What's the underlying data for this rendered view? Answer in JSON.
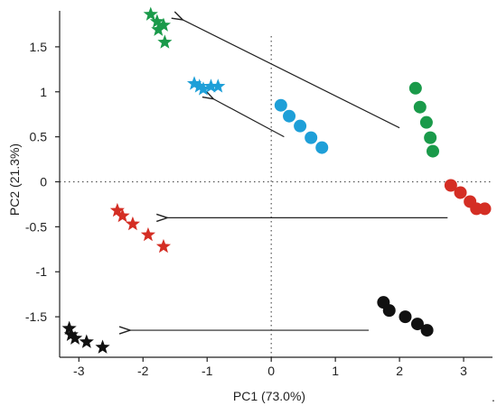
{
  "chart_data": {
    "type": "scatter",
    "xlabel": "PC1 (73.0%)",
    "ylabel": "PC2 (21.3%)",
    "xlim": [
      -3.3,
      3.45
    ],
    "ylim": [
      -1.95,
      1.9
    ],
    "xticks": [
      -3,
      -2,
      -1,
      0,
      1,
      2,
      3
    ],
    "yticks": [
      1.5,
      1,
      0.5,
      0,
      -0.5,
      -1,
      -1.5
    ],
    "xtick_labels": [
      "-3",
      "-2",
      "-1",
      "0",
      "1",
      "2",
      "3"
    ],
    "ytick_labels": [
      "1.5",
      "1",
      "0.5",
      "0",
      "-0.5",
      "-1",
      "-1.5"
    ],
    "reference_lines": {
      "x": 0,
      "y": 0,
      "style": "dotted"
    },
    "legend": "none",
    "series": [
      {
        "color": "#1a9a4a",
        "marker": "circle",
        "points": [
          [
            2.25,
            1.04
          ],
          [
            2.32,
            0.83
          ],
          [
            2.42,
            0.66
          ],
          [
            2.48,
            0.49
          ],
          [
            2.52,
            0.34
          ]
        ]
      },
      {
        "color": "#1a9a4a",
        "marker": "star",
        "points": [
          [
            -1.88,
            1.86
          ],
          [
            -1.78,
            1.78
          ],
          [
            -1.68,
            1.74
          ],
          [
            -1.76,
            1.69
          ],
          [
            -1.66,
            1.55
          ]
        ]
      },
      {
        "color": "#1e9fd8",
        "marker": "circle",
        "points": [
          [
            0.15,
            0.85
          ],
          [
            0.28,
            0.73
          ],
          [
            0.45,
            0.62
          ],
          [
            0.62,
            0.49
          ],
          [
            0.79,
            0.38
          ]
        ]
      },
      {
        "color": "#1e9fd8",
        "marker": "star",
        "points": [
          [
            -1.2,
            1.09
          ],
          [
            -1.12,
            1.06
          ],
          [
            -1.06,
            1.03
          ],
          [
            -0.94,
            1.06
          ],
          [
            -0.83,
            1.06
          ]
        ]
      },
      {
        "color": "#d42e24",
        "marker": "circle",
        "points": [
          [
            2.8,
            -0.04
          ],
          [
            2.95,
            -0.12
          ],
          [
            3.1,
            -0.22
          ],
          [
            3.2,
            -0.3
          ],
          [
            3.33,
            -0.3
          ]
        ]
      },
      {
        "color": "#d42e24",
        "marker": "star",
        "points": [
          [
            -2.4,
            -0.32
          ],
          [
            -2.32,
            -0.38
          ],
          [
            -2.16,
            -0.47
          ],
          [
            -1.92,
            -0.59
          ],
          [
            -1.68,
            -0.72
          ]
        ]
      },
      {
        "color": "#111111",
        "marker": "circle",
        "points": [
          [
            1.75,
            -1.34
          ],
          [
            1.84,
            -1.43
          ],
          [
            2.09,
            -1.5
          ],
          [
            2.28,
            -1.58
          ],
          [
            2.43,
            -1.65
          ]
        ]
      },
      {
        "color": "#111111",
        "marker": "star",
        "points": [
          [
            -3.15,
            -1.63
          ],
          [
            -3.12,
            -1.7
          ],
          [
            -3.06,
            -1.74
          ],
          [
            -2.88,
            -1.78
          ],
          [
            -2.63,
            -1.84
          ]
        ]
      }
    ],
    "arrows": [
      {
        "from": [
          2.0,
          0.6
        ],
        "to": [
          -1.38,
          1.8
        ]
      },
      {
        "from": [
          0.2,
          0.5
        ],
        "to": [
          -0.9,
          0.92
        ]
      },
      {
        "from": [
          2.75,
          -0.4
        ],
        "to": [
          -1.62,
          -0.4
        ]
      },
      {
        "from": [
          1.52,
          -1.65
        ],
        "to": [
          -2.2,
          -1.65
        ]
      }
    ],
    "trailing_text": "."
  }
}
